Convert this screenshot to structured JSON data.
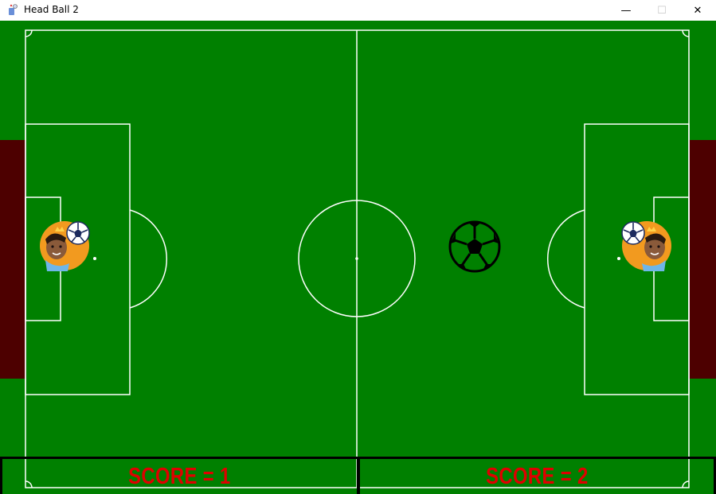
{
  "window": {
    "title": "Head Ball 2",
    "minimize_glyph": "—",
    "maximize_glyph": "☐",
    "close_glyph": "✕",
    "app_icon": "game-app-icon"
  },
  "scoreboard": {
    "left_label": "SCORE = 1",
    "right_label": "SCORE = 2"
  },
  "colors": {
    "pitch": "#008000",
    "goal": "#4d0000",
    "lines": "#ffffff",
    "score_text": "#e00000",
    "player_head": "#f29a1f",
    "ball": "#000000"
  }
}
